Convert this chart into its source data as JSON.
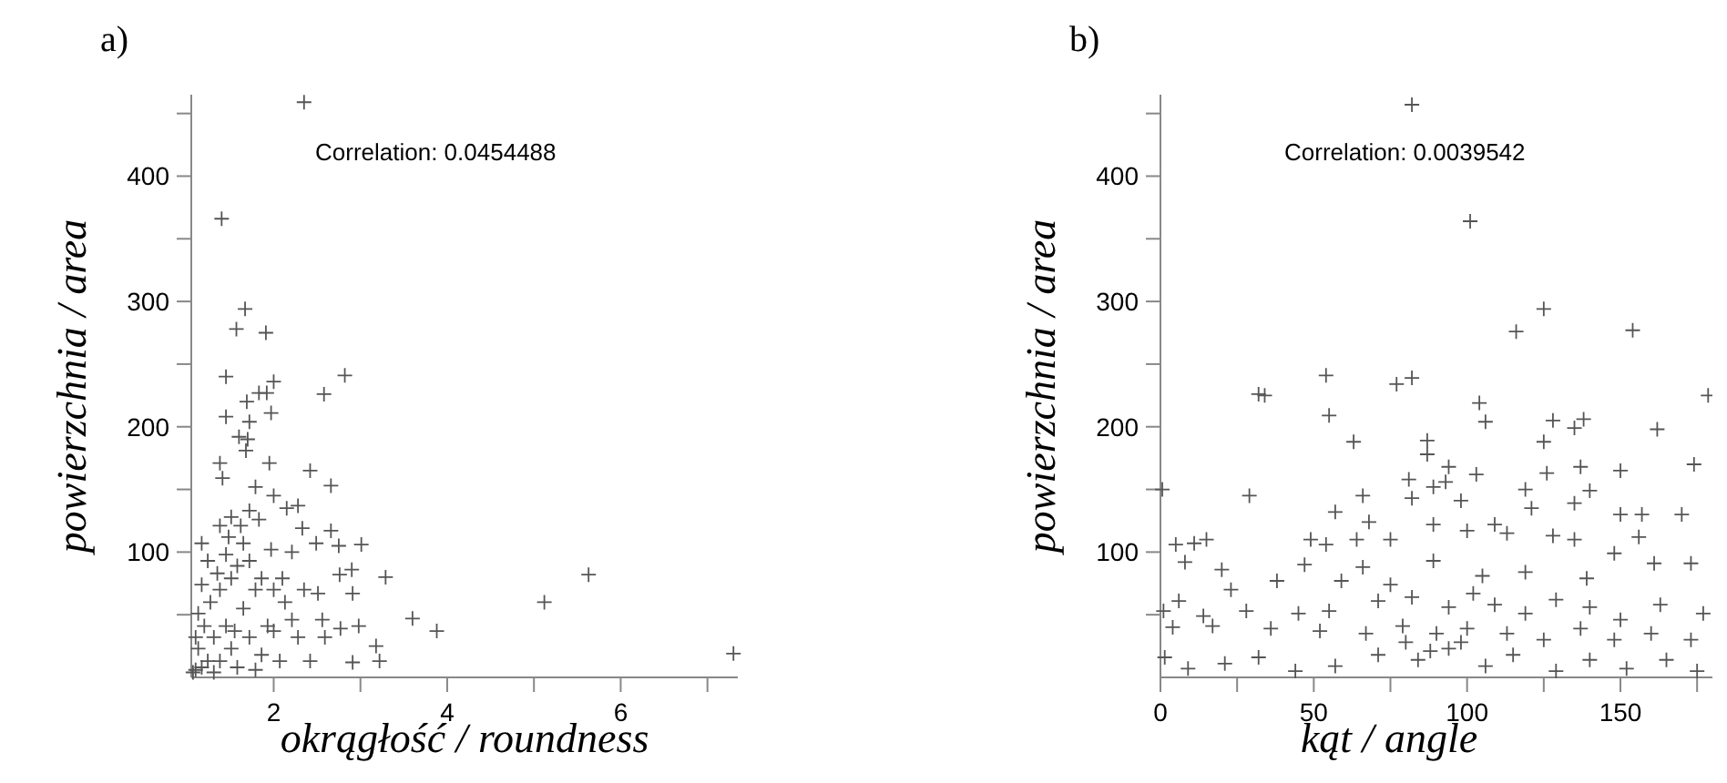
{
  "chart_data": [
    {
      "type": "scatter",
      "title": "a)",
      "xlabel": "okrągłość / roundness",
      "ylabel": "powierzchnia / area",
      "marker": "cross",
      "grid": false,
      "annotations": [
        "Correlation: 0.0454488"
      ],
      "xlim": [
        1.05,
        7.35
      ],
      "xticks": [
        2,
        {
          "value": 3,
          "label": null
        },
        4,
        {
          "value": 5,
          "label": null
        },
        6,
        {
          "value": 7,
          "label": null
        }
      ],
      "ylim": [
        0,
        465
      ],
      "yticks": [
        {
          "value": 50,
          "label": null
        },
        100,
        {
          "value": 150,
          "label": null
        },
        200,
        {
          "value": 250,
          "label": null
        },
        300,
        {
          "value": 350,
          "label": null
        },
        400,
        {
          "value": 450,
          "label": null
        }
      ],
      "series": [
        {
          "color": "#555555",
          "x": [
            2.35,
            1.4,
            1.67,
            1.57,
            1.91,
            1.45,
            2.82,
            2.58,
            2.0,
            1.83,
            1.92,
            1.69,
            1.97,
            1.45,
            1.72,
            1.6,
            1.7,
            1.68,
            1.38,
            1.95,
            2.42,
            2.66,
            1.41,
            1.79,
            2.0,
            2.15,
            2.28,
            1.72,
            1.51,
            2.33,
            2.66,
            1.38,
            2.49,
            2.75,
            3.01,
            1.17,
            2.21,
            1.97,
            1.65,
            2.76,
            2.9,
            3.29,
            5.63,
            2.51,
            2.91,
            5.12,
            3.6,
            3.88,
            7.3,
            3.22,
            2.91,
            3.18,
            2.98,
            2.77,
            2.56,
            2.28,
            2.42,
            2.07,
            1.86,
            1.17,
            1.1,
            1.24,
            1.13,
            1.31,
            1.2,
            1.13,
            1.27,
            1.38,
            1.51,
            1.58,
            1.45,
            1.72,
            1.86,
            2.0,
            2.13,
            2.21,
            1.93,
            1.72,
            1.51,
            1.38,
            1.58,
            1.79,
            1.45,
            1.65,
            1.35,
            1.48,
            1.24,
            2.1,
            2.35,
            2.59,
            1.1,
            1.17,
            1.07,
            1.31,
            1.55,
            1.79,
            2.0,
            1.62,
            1.83
          ],
          "values": [
            459,
            366,
            294,
            278,
            275,
            240,
            241,
            226,
            236,
            227,
            227,
            220,
            211,
            208,
            204,
            192,
            190,
            181,
            171,
            171,
            165,
            153,
            159,
            152,
            145,
            135,
            137,
            133,
            128,
            119,
            117,
            121,
            107,
            105,
            106,
            107,
            100,
            102,
            107,
            82,
            86,
            80,
            82,
            67,
            67,
            60,
            47,
            37,
            19,
            13,
            12,
            25,
            41,
            39,
            46,
            32,
            13,
            13,
            18,
            8,
            6,
            13,
            23,
            32,
            41,
            51,
            60,
            70,
            79,
            89,
            98,
            93,
            79,
            70,
            60,
            46,
            41,
            32,
            23,
            13,
            8,
            6,
            41,
            55,
            83,
            112,
            93,
            79,
            70,
            32,
            32,
            74,
            4,
            4,
            37,
            70,
            37,
            121,
            126
          ]
        }
      ]
    },
    {
      "type": "scatter",
      "title": "b)",
      "xlabel": "kąt / angle",
      "ylabel": "powierzchnia / area",
      "marker": "cross",
      "grid": false,
      "annotations": [
        "Correlation: 0.0039542"
      ],
      "xlim": [
        0,
        180
      ],
      "xticks": [
        0,
        {
          "value": 25,
          "label": null
        },
        50,
        {
          "value": 75,
          "label": null
        },
        100,
        {
          "value": 125,
          "label": null
        },
        150,
        {
          "value": 175,
          "label": null
        }
      ],
      "ylim": [
        0,
        465
      ],
      "yticks": [
        {
          "value": 50,
          "label": null
        },
        100,
        {
          "value": 150,
          "label": null
        },
        200,
        {
          "value": 250,
          "label": null
        },
        300,
        {
          "value": 350,
          "label": null
        },
        400,
        {
          "value": 450,
          "label": null
        }
      ],
      "series": [
        {
          "color": "#555555",
          "x": [
            82,
            101,
            125,
            154,
            116,
            54,
            82,
            77,
            32,
            34,
            178.6,
            104,
            106,
            128,
            138,
            135,
            162,
            55,
            63,
            87,
            125,
            87,
            94,
            137,
            150,
            126,
            103,
            174,
            81,
            89,
            93,
            119,
            140,
            0.6,
            29,
            66,
            98,
            82,
            135,
            121,
            57,
            150,
            157,
            170,
            68,
            89,
            109,
            100,
            113,
            49,
            75,
            15,
            11,
            5,
            54,
            64,
            128,
            135,
            156,
            148,
            8,
            47,
            89,
            20,
            66,
            119,
            139,
            161,
            38,
            23,
            59,
            105,
            75,
            173,
            1,
            6,
            14,
            28,
            45,
            55,
            71,
            82,
            94,
            102,
            109,
            119,
            129,
            140,
            150,
            163,
            177,
            4,
            17,
            36,
            52,
            67,
            79,
            90,
            100,
            113,
            125,
            137,
            148,
            160,
            173,
            1.4,
            9,
            21,
            32,
            44,
            57,
            71,
            84,
            94,
            106,
            115,
            129,
            140,
            152,
            165,
            175,
            88,
            98,
            80
          ],
          "values": [
            457,
            364,
            294,
            277,
            276,
            241,
            239,
            234,
            226,
            225,
            225,
            219,
            204,
            205,
            206,
            199,
            198,
            209,
            188,
            189,
            188,
            178,
            168,
            168,
            165,
            163,
            162,
            170,
            158,
            152,
            156,
            150,
            149,
            150,
            145,
            145,
            141,
            143,
            139,
            135,
            132,
            130,
            130,
            130,
            124,
            122,
            122,
            117,
            115,
            110,
            110,
            110,
            107,
            106,
            106,
            110,
            113,
            110,
            112,
            99,
            92,
            90,
            93,
            86,
            88,
            84,
            79,
            91,
            77,
            70,
            77,
            81,
            74,
            91,
            53,
            61,
            49,
            53,
            51,
            53,
            61,
            64,
            56,
            67,
            58,
            51,
            62,
            56,
            46,
            58,
            51,
            40,
            41,
            39,
            37,
            35,
            41,
            35,
            39,
            35,
            30,
            39,
            30,
            35,
            30,
            16,
            7,
            11,
            16,
            5,
            9,
            18,
            14,
            23,
            9,
            18,
            5,
            14,
            7,
            14,
            5,
            21,
            28,
            28
          ]
        }
      ]
    }
  ]
}
